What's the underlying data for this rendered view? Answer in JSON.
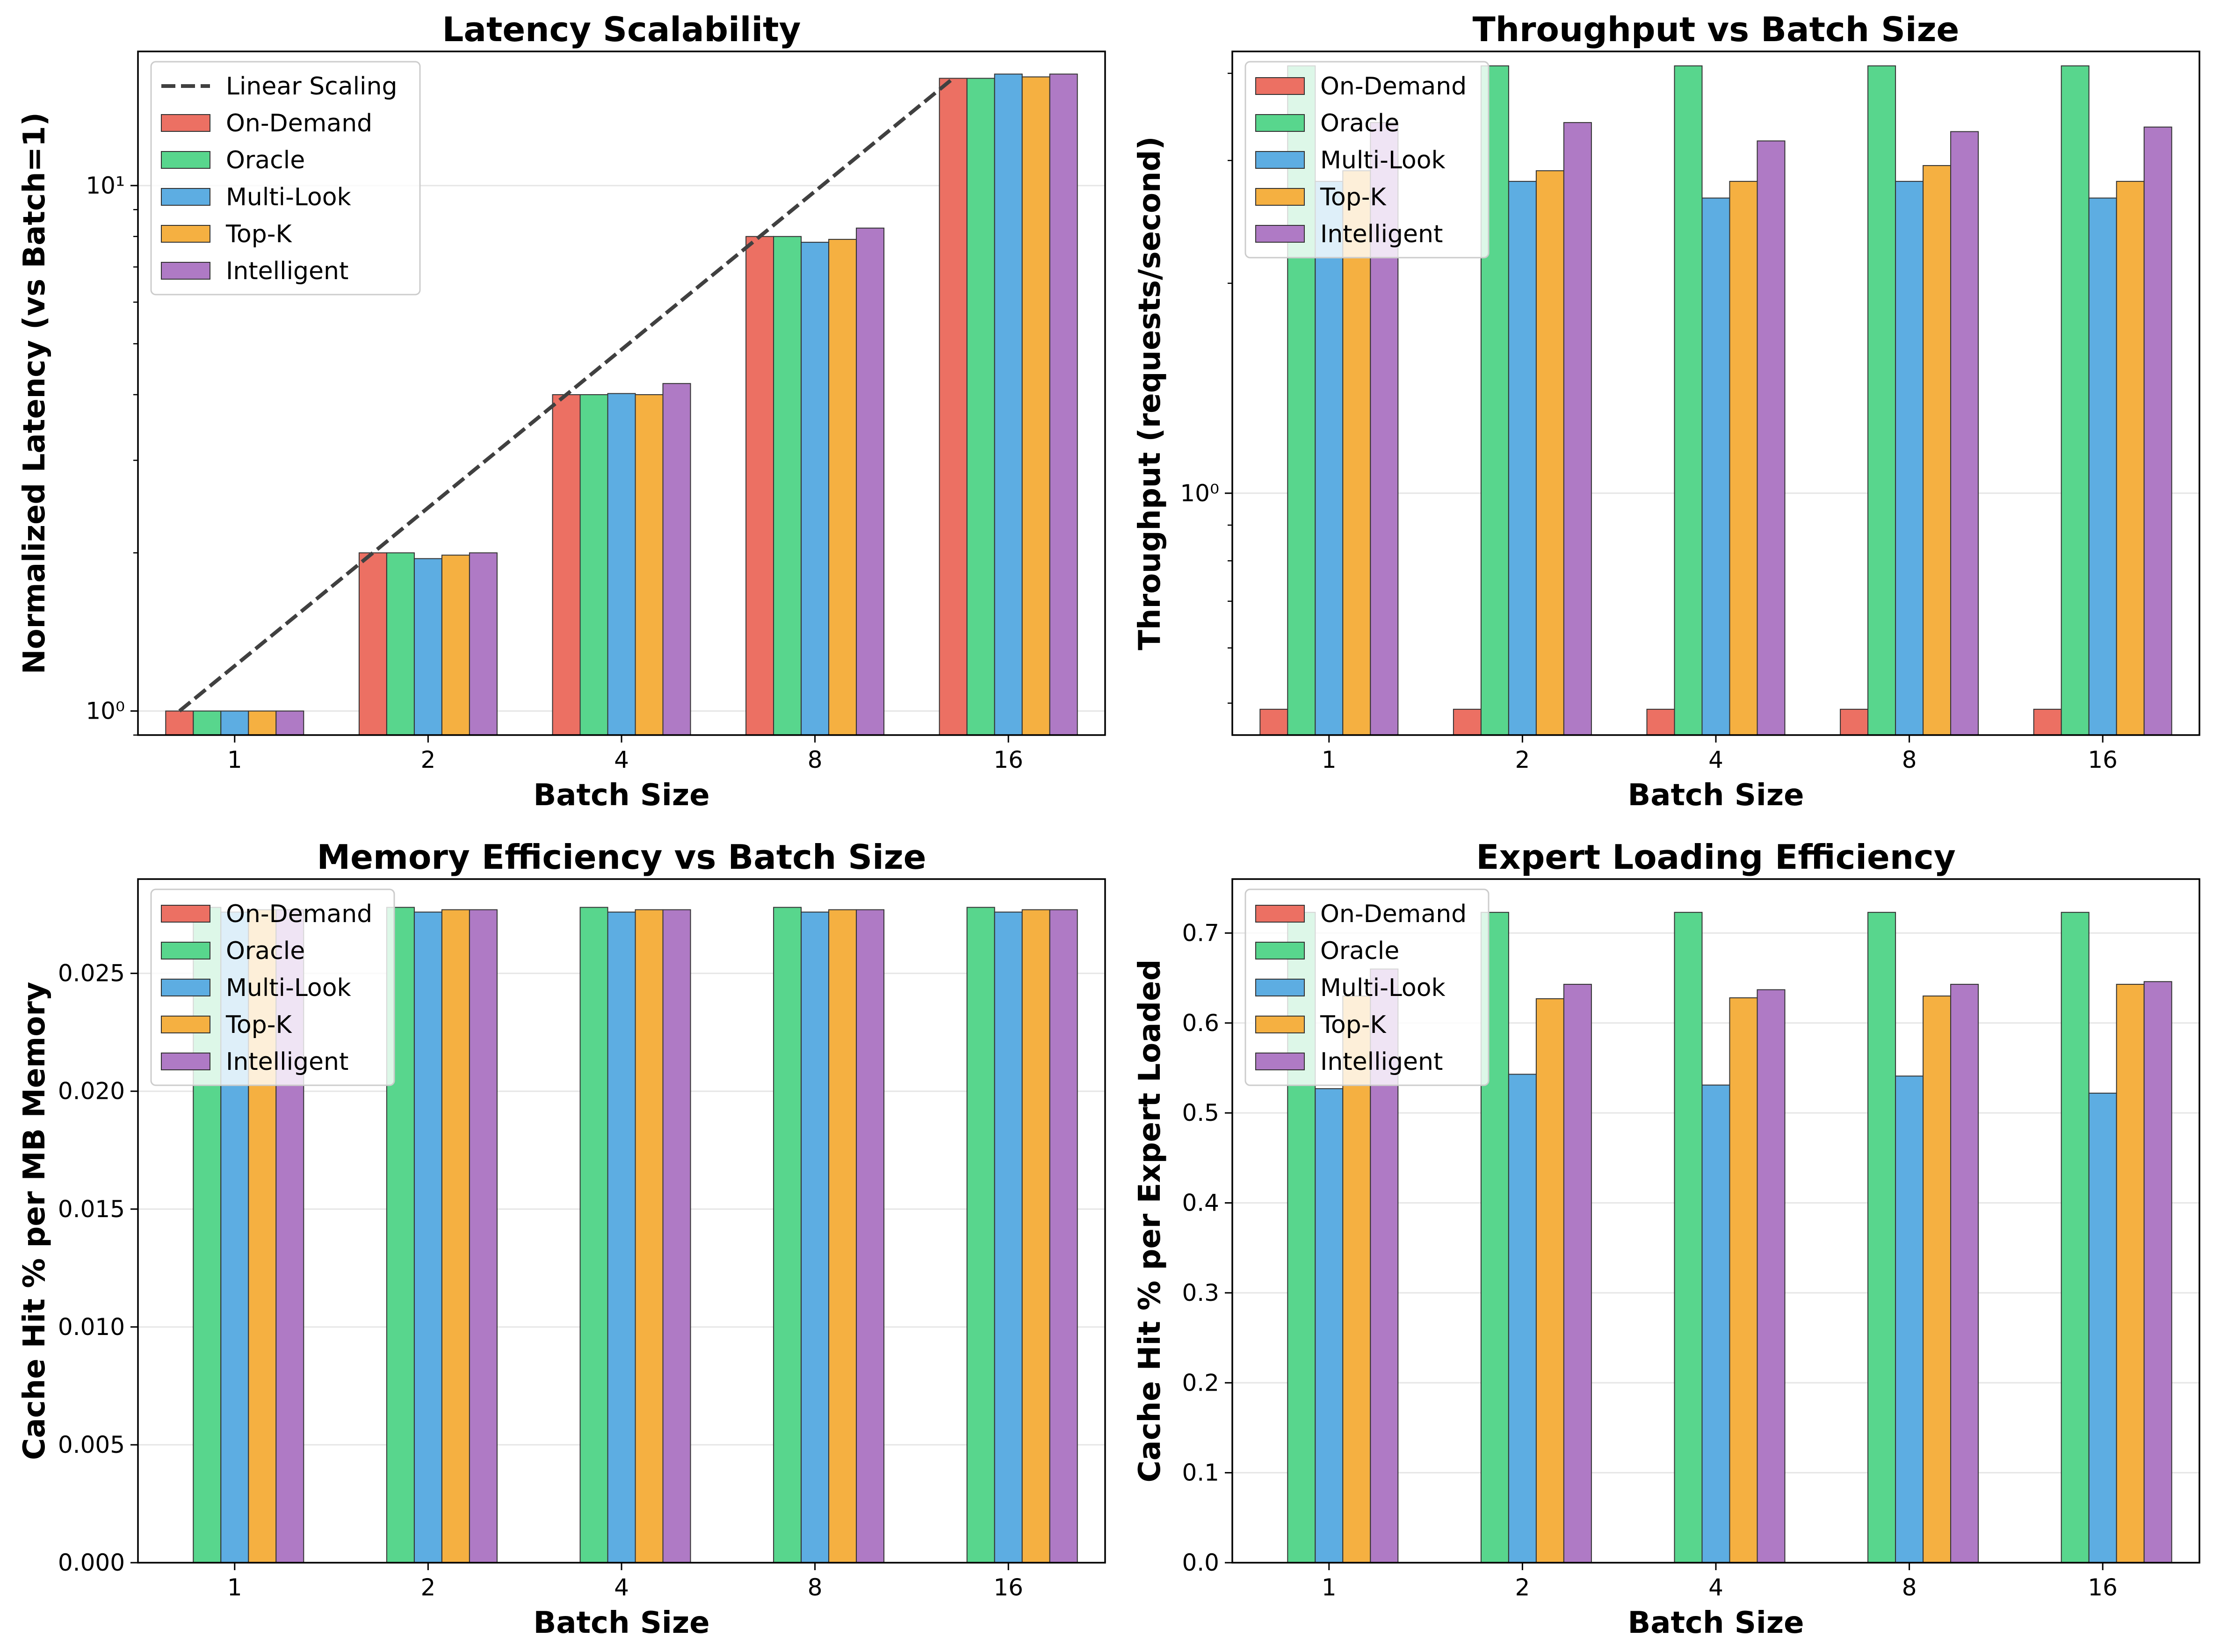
{
  "colors": {
    "On-Demand": "#ec7063",
    "Oracle": "#58d68d",
    "Multi-Look": "#5dade2",
    "Top-K": "#f5b041",
    "Intelligent": "#af7ac5",
    "linear_scaling": "#404040",
    "grid": "#e6e6e6"
  },
  "chart_data": [
    {
      "type": "bar",
      "title": "Latency Scalability",
      "xlabel": "Batch Size",
      "ylabel": "Normalized Latency (vs Batch=1)",
      "yscale": "log",
      "ylim": [
        0.9,
        18
      ],
      "ytick_labels": [
        "10⁰",
        "10¹"
      ],
      "categories": [
        "1",
        "2",
        "4",
        "8",
        "16"
      ],
      "grid": "y",
      "legend_position": "upper left",
      "series": [
        {
          "name": "On-Demand",
          "values": [
            1.0,
            2.0,
            4.0,
            8.0,
            16.0
          ]
        },
        {
          "name": "Oracle",
          "values": [
            1.0,
            2.0,
            4.0,
            8.0,
            16.0
          ]
        },
        {
          "name": "Multi-Look",
          "values": [
            1.0,
            1.95,
            4.02,
            7.8,
            16.3
          ]
        },
        {
          "name": "Top-K",
          "values": [
            1.0,
            1.98,
            4.0,
            7.9,
            16.1
          ]
        },
        {
          "name": "Intelligent",
          "values": [
            1.0,
            2.0,
            4.2,
            8.3,
            16.3
          ]
        }
      ],
      "lines": [
        {
          "name": "Linear Scaling",
          "style": "dashed",
          "values": [
            1,
            2,
            4,
            8,
            16
          ]
        }
      ]
    },
    {
      "type": "bar",
      "title": "Throughput vs Batch Size",
      "xlabel": "Batch Size",
      "ylabel": "Throughput (requests/second)",
      "yscale": "log",
      "ylim": [
        0.45,
        4.3
      ],
      "ytick_labels": [
        "10⁰"
      ],
      "categories": [
        "1",
        "2",
        "4",
        "8",
        "16"
      ],
      "grid": "y",
      "legend_position": "upper left",
      "series": [
        {
          "name": "On-Demand",
          "values": [
            0.49,
            0.49,
            0.49,
            0.49,
            0.49
          ]
        },
        {
          "name": "Oracle",
          "values": [
            4.1,
            4.1,
            4.1,
            4.1,
            4.1
          ]
        },
        {
          "name": "Multi-Look",
          "values": [
            2.8,
            2.8,
            2.65,
            2.8,
            2.65
          ]
        },
        {
          "name": "Top-K",
          "values": [
            2.9,
            2.9,
            2.8,
            2.95,
            2.8
          ]
        },
        {
          "name": "Intelligent",
          "values": [
            3.4,
            3.4,
            3.2,
            3.3,
            3.35
          ]
        }
      ]
    },
    {
      "type": "bar",
      "title": "Memory Efficiency vs Batch Size",
      "xlabel": "Batch Size",
      "ylabel": "Cache Hit % per MB Memory",
      "ylim": [
        0,
        0.029
      ],
      "ytick_labels": [
        "0.000",
        "0.005",
        "0.010",
        "0.015",
        "0.020",
        "0.025"
      ],
      "categories": [
        "1",
        "2",
        "4",
        "8",
        "16"
      ],
      "grid": "y",
      "legend_position": "upper left",
      "series": [
        {
          "name": "On-Demand",
          "values": [
            0,
            0,
            0,
            0,
            0
          ]
        },
        {
          "name": "Oracle",
          "values": [
            0.0278,
            0.0278,
            0.0278,
            0.0278,
            0.0278
          ]
        },
        {
          "name": "Multi-Look",
          "values": [
            0.0276,
            0.0276,
            0.0276,
            0.0276,
            0.0276
          ]
        },
        {
          "name": "Top-K",
          "values": [
            0.0277,
            0.0277,
            0.0277,
            0.0277,
            0.0277
          ]
        },
        {
          "name": "Intelligent",
          "values": [
            0.0277,
            0.0277,
            0.0277,
            0.0277,
            0.0277
          ]
        }
      ]
    },
    {
      "type": "bar",
      "title": "Expert Loading Efficiency",
      "xlabel": "Batch Size",
      "ylabel": "Cache Hit % per Expert Loaded",
      "ylim": [
        0,
        0.76
      ],
      "ytick_labels": [
        "0.0",
        "0.1",
        "0.2",
        "0.3",
        "0.4",
        "0.5",
        "0.6",
        "0.7"
      ],
      "categories": [
        "1",
        "2",
        "4",
        "8",
        "16"
      ],
      "grid": "y",
      "legend_position": "upper left",
      "series": [
        {
          "name": "On-Demand",
          "values": [
            0,
            0,
            0,
            0,
            0
          ]
        },
        {
          "name": "Oracle",
          "values": [
            0.723,
            0.723,
            0.723,
            0.723,
            0.723
          ]
        },
        {
          "name": "Multi-Look",
          "values": [
            0.527,
            0.543,
            0.531,
            0.541,
            0.522
          ]
        },
        {
          "name": "Top-K",
          "values": [
            0.63,
            0.627,
            0.628,
            0.63,
            0.643
          ]
        },
        {
          "name": "Intelligent",
          "values": [
            0.66,
            0.643,
            0.637,
            0.643,
            0.646
          ]
        }
      ]
    }
  ]
}
